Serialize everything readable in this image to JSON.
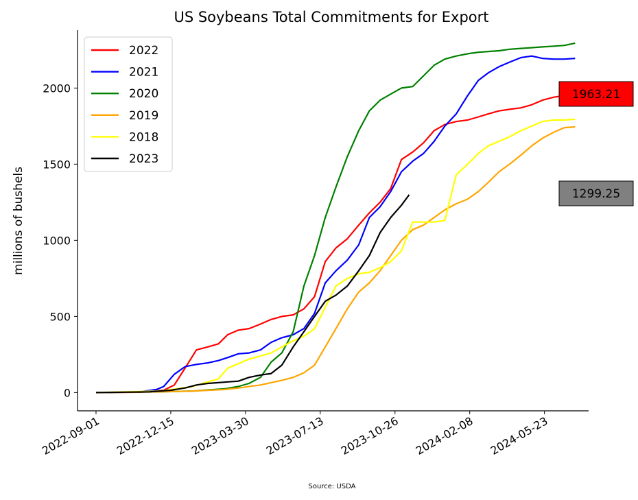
{
  "chart_data": {
    "type": "line",
    "title": "US Soybeans Total Commitments for Export",
    "ylabel": "millions of bushels",
    "xlabel": "",
    "source": "Source: USDA",
    "ylim": [
      -120,
      2380
    ],
    "yticks": [
      0,
      500,
      1000,
      1500,
      2000
    ],
    "xticks": [
      "2022-09-01",
      "2022-12-15",
      "2023-03-30",
      "2023-07-13",
      "2023-10-26",
      "2024-02-08",
      "2024-05-23"
    ],
    "xlim": [
      "2022-08-06",
      "2024-07-24"
    ],
    "legend_position": "upper-left",
    "series": [
      {
        "name": "2022",
        "color": "#ff0000",
        "x": [
          "2022-09-01",
          "2022-11-01",
          "2022-12-05",
          "2022-12-20",
          "2023-01-04",
          "2023-01-20",
          "2023-02-05",
          "2023-02-20",
          "2023-03-05",
          "2023-03-20",
          "2023-04-04",
          "2023-04-20",
          "2023-05-05",
          "2023-05-20",
          "2023-06-05",
          "2023-06-20",
          "2023-07-05",
          "2023-07-20",
          "2023-08-04",
          "2023-08-20",
          "2023-09-05",
          "2023-09-20",
          "2023-10-05",
          "2023-10-20",
          "2023-11-04",
          "2023-11-20",
          "2023-12-05",
          "2023-12-20",
          "2024-01-04",
          "2024-01-20",
          "2024-02-05",
          "2024-02-20",
          "2024-03-05",
          "2024-03-20",
          "2024-04-04",
          "2024-04-20",
          "2024-05-05",
          "2024-05-20",
          "2024-06-05",
          "2024-06-20",
          "2024-07-05"
        ],
        "y": [
          0,
          2,
          15,
          50,
          160,
          280,
          300,
          320,
          380,
          410,
          420,
          450,
          480,
          500,
          510,
          550,
          630,
          860,
          950,
          1010,
          1100,
          1180,
          1250,
          1340,
          1530,
          1580,
          1640,
          1720,
          1760,
          1780,
          1790,
          1810,
          1830,
          1850,
          1860,
          1870,
          1890,
          1920,
          1940,
          1950,
          1963.21
        ]
      },
      {
        "name": "2021",
        "color": "#0000ff",
        "x": [
          "2022-09-01",
          "2022-11-01",
          "2022-11-25",
          "2022-12-05",
          "2022-12-20",
          "2023-01-04",
          "2023-01-20",
          "2023-02-05",
          "2023-02-20",
          "2023-03-05",
          "2023-03-20",
          "2023-04-04",
          "2023-04-20",
          "2023-05-05",
          "2023-05-20",
          "2023-06-05",
          "2023-06-20",
          "2023-07-05",
          "2023-07-20",
          "2023-08-04",
          "2023-08-20",
          "2023-09-05",
          "2023-09-20",
          "2023-10-05",
          "2023-10-20",
          "2023-11-04",
          "2023-11-20",
          "2023-12-05",
          "2023-12-20",
          "2024-01-04",
          "2024-01-20",
          "2024-02-05",
          "2024-02-20",
          "2024-03-05",
          "2024-03-20",
          "2024-04-04",
          "2024-04-20",
          "2024-05-05",
          "2024-05-20",
          "2024-06-05",
          "2024-06-20",
          "2024-07-05"
        ],
        "y": [
          0,
          5,
          20,
          40,
          120,
          170,
          185,
          195,
          210,
          230,
          255,
          260,
          280,
          330,
          360,
          380,
          420,
          520,
          720,
          800,
          870,
          970,
          1150,
          1220,
          1320,
          1450,
          1520,
          1570,
          1650,
          1750,
          1830,
          1950,
          2050,
          2100,
          2140,
          2170,
          2200,
          2210,
          2195,
          2190,
          2190,
          2195
        ]
      },
      {
        "name": "2020",
        "color": "#008000",
        "x": [
          "2022-09-01",
          "2022-12-01",
          "2023-01-15",
          "2023-03-01",
          "2023-03-20",
          "2023-04-04",
          "2023-04-20",
          "2023-05-05",
          "2023-05-20",
          "2023-06-05",
          "2023-06-20",
          "2023-07-05",
          "2023-07-20",
          "2023-08-04",
          "2023-08-20",
          "2023-09-05",
          "2023-09-20",
          "2023-10-05",
          "2023-10-20",
          "2023-11-04",
          "2023-11-20",
          "2023-12-05",
          "2023-12-20",
          "2024-01-04",
          "2024-01-20",
          "2024-02-05",
          "2024-02-20",
          "2024-03-05",
          "2024-03-20",
          "2024-04-04",
          "2024-04-20",
          "2024-05-05",
          "2024-05-20",
          "2024-06-05",
          "2024-06-20",
          "2024-07-05"
        ],
        "y": [
          0,
          5,
          10,
          25,
          40,
          60,
          100,
          200,
          260,
          400,
          700,
          900,
          1150,
          1350,
          1550,
          1720,
          1850,
          1920,
          1960,
          2000,
          2010,
          2080,
          2150,
          2190,
          2210,
          2225,
          2235,
          2240,
          2245,
          2255,
          2260,
          2265,
          2270,
          2275,
          2280,
          2295
        ]
      },
      {
        "name": "2019",
        "color": "#ffa500",
        "x": [
          "2022-09-01",
          "2022-12-01",
          "2023-01-15",
          "2023-03-01",
          "2023-03-20",
          "2023-04-20",
          "2023-05-20",
          "2023-06-05",
          "2023-06-20",
          "2023-07-05",
          "2023-07-20",
          "2023-08-04",
          "2023-08-20",
          "2023-09-05",
          "2023-09-20",
          "2023-10-05",
          "2023-10-20",
          "2023-11-04",
          "2023-11-20",
          "2023-12-05",
          "2023-12-20",
          "2024-01-04",
          "2024-01-20",
          "2024-02-05",
          "2024-02-20",
          "2024-03-05",
          "2024-03-20",
          "2024-04-04",
          "2024-04-20",
          "2024-05-05",
          "2024-05-20",
          "2024-06-05",
          "2024-06-20",
          "2024-07-05"
        ],
        "y": [
          0,
          5,
          10,
          20,
          30,
          50,
          80,
          100,
          130,
          180,
          300,
          420,
          550,
          660,
          720,
          800,
          900,
          1000,
          1070,
          1100,
          1150,
          1200,
          1240,
          1270,
          1320,
          1380,
          1450,
          1500,
          1560,
          1620,
          1670,
          1710,
          1740,
          1745
        ]
      },
      {
        "name": "2018",
        "color": "#ffff00",
        "x": [
          "2022-09-01",
          "2022-12-01",
          "2023-01-15",
          "2023-02-05",
          "2023-02-20",
          "2023-03-05",
          "2023-03-20",
          "2023-04-04",
          "2023-04-20",
          "2023-05-05",
          "2023-05-20",
          "2023-06-05",
          "2023-06-20",
          "2023-07-05",
          "2023-07-20",
          "2023-08-04",
          "2023-08-20",
          "2023-09-05",
          "2023-09-20",
          "2023-10-05",
          "2023-10-20",
          "2023-11-04",
          "2023-11-20",
          "2023-12-05",
          "2023-12-20",
          "2024-01-04",
          "2024-01-20",
          "2024-02-05",
          "2024-02-20",
          "2024-03-05",
          "2024-03-20",
          "2024-04-04",
          "2024-04-20",
          "2024-05-05",
          "2024-05-20",
          "2024-06-05",
          "2024-06-20",
          "2024-07-05"
        ],
        "y": [
          0,
          10,
          40,
          70,
          90,
          160,
          190,
          220,
          240,
          260,
          300,
          340,
          370,
          420,
          560,
          700,
          750,
          780,
          790,
          820,
          860,
          930,
          1120,
          1120,
          1120,
          1130,
          1430,
          1500,
          1570,
          1620,
          1650,
          1680,
          1720,
          1750,
          1780,
          1790,
          1790,
          1795
        ]
      },
      {
        "name": "2023",
        "color": "#000000",
        "x": [
          "2022-09-01",
          "2022-11-15",
          "2022-12-15",
          "2023-01-04",
          "2023-01-20",
          "2023-02-05",
          "2023-02-20",
          "2023-03-05",
          "2023-03-20",
          "2023-04-04",
          "2023-04-20",
          "2023-05-05",
          "2023-05-20",
          "2023-06-05",
          "2023-06-20",
          "2023-07-05",
          "2023-07-20",
          "2023-08-04",
          "2023-08-20",
          "2023-09-05",
          "2023-09-20",
          "2023-10-05",
          "2023-10-20",
          "2023-11-04",
          "2023-11-15"
        ],
        "y": [
          0,
          5,
          15,
          30,
          50,
          60,
          65,
          70,
          75,
          100,
          115,
          125,
          180,
          300,
          400,
          500,
          600,
          640,
          700,
          800,
          900,
          1050,
          1150,
          1230,
          1299.25
        ]
      }
    ],
    "annotations": [
      {
        "text": "1963.21",
        "fill": "#ff0000",
        "value": 1963.21
      },
      {
        "text": "1299.25",
        "fill": "#808080",
        "value": 1299.25
      }
    ]
  }
}
